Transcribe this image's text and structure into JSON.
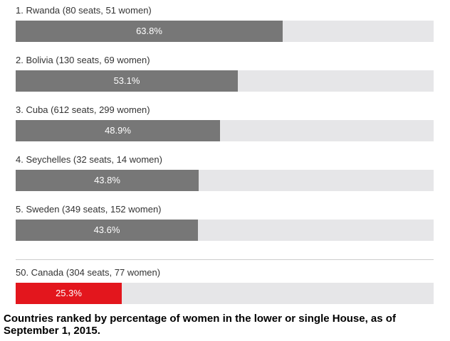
{
  "caption": "Countries ranked by percentage of women in the lower or single House, as of September 1, 2015.",
  "colors": {
    "bar_default": "#777777",
    "bar_highlight": "#e3161d",
    "track": "#e6e6e8"
  },
  "chart_data": {
    "type": "bar",
    "orientation": "horizontal",
    "ylim": [
      0,
      100
    ],
    "grid": false,
    "legend": "none",
    "categories": [
      "1. Rwanda (80 seats, 51 women)",
      "2. Bolivia (130 seats, 69 women)",
      "3. Cuba (612 seats, 299 women)",
      "4. Seychelles (32 seats, 14 women)",
      "5. Sweden (349 seats, 152 women)",
      "50. Canada (304 seats, 77 women)"
    ],
    "values": [
      63.8,
      53.1,
      48.9,
      43.8,
      43.6,
      25.3
    ],
    "value_labels": [
      "63.8%",
      "53.1%",
      "48.9%",
      "43.8%",
      "43.6%",
      "25.3%"
    ],
    "highlight": [
      false,
      false,
      false,
      false,
      false,
      true
    ]
  }
}
